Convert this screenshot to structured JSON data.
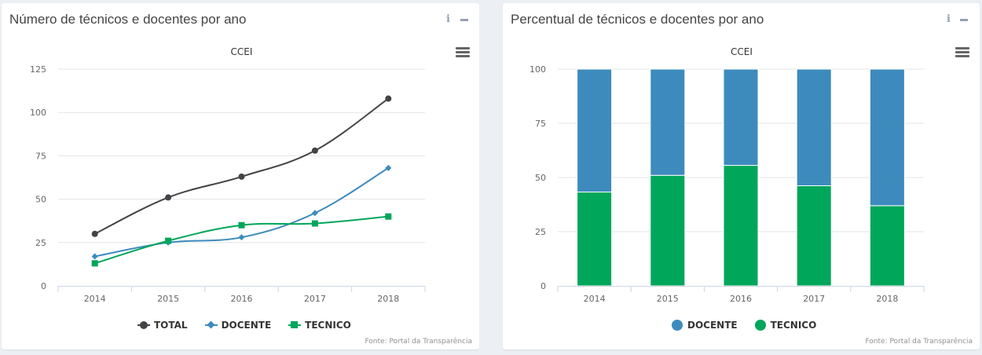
{
  "left_panel": {
    "title": "Número de técnicos e docentes por ano",
    "info_glyph": "i",
    "source": "Fonte: Portal da Transparência"
  },
  "right_panel": {
    "title": "Percentual de técnicos e docentes por ano",
    "info_glyph": "i",
    "source": "Fonte: Portal da Transparência"
  },
  "icons": [
    "info-icon",
    "minus-icon",
    "hamburger-menu-icon"
  ],
  "colors": {
    "total": "#434348",
    "docente": "#3d8bbd",
    "tecnico": "#00a65a",
    "grid": "#e6e6e6",
    "axis_text": "#666666",
    "background": "#ecf0f5"
  },
  "chart_data": [
    {
      "type": "line",
      "title": "CCEI",
      "categories": [
        "2014",
        "2015",
        "2016",
        "2017",
        "2018"
      ],
      "ylim": [
        0,
        125
      ],
      "yticks": [
        0,
        25,
        50,
        75,
        100,
        125
      ],
      "grid": true,
      "legend_position": "bottom",
      "series": [
        {
          "name": "TOTAL",
          "values": [
            30,
            51,
            63,
            78,
            108
          ],
          "marker": "circle"
        },
        {
          "name": "DOCENTE",
          "values": [
            17,
            25,
            28,
            42,
            68
          ],
          "marker": "diamond"
        },
        {
          "name": "TECNICO",
          "values": [
            13,
            26,
            35,
            36,
            40
          ],
          "marker": "square"
        }
      ]
    },
    {
      "type": "bar",
      "stacked": "percent",
      "title": "CCEI",
      "categories": [
        "2014",
        "2015",
        "2016",
        "2017",
        "2018"
      ],
      "ylim": [
        0,
        100
      ],
      "yticks": [
        0,
        25,
        50,
        75,
        100
      ],
      "grid": true,
      "legend_position": "bottom",
      "series": [
        {
          "name": "DOCENTE",
          "values": [
            56.7,
            49.0,
            44.4,
            53.8,
            63.0
          ]
        },
        {
          "name": "TECNICO",
          "values": [
            43.3,
            51.0,
            55.6,
            46.2,
            37.0
          ]
        }
      ]
    }
  ]
}
